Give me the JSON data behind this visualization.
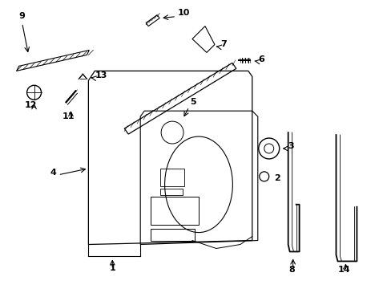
{
  "bg_color": "#ffffff",
  "line_color": "#000000",
  "fig_width": 4.89,
  "fig_height": 3.6,
  "dpi": 100,
  "font_size": 8,
  "arrow_lw": 0.8
}
